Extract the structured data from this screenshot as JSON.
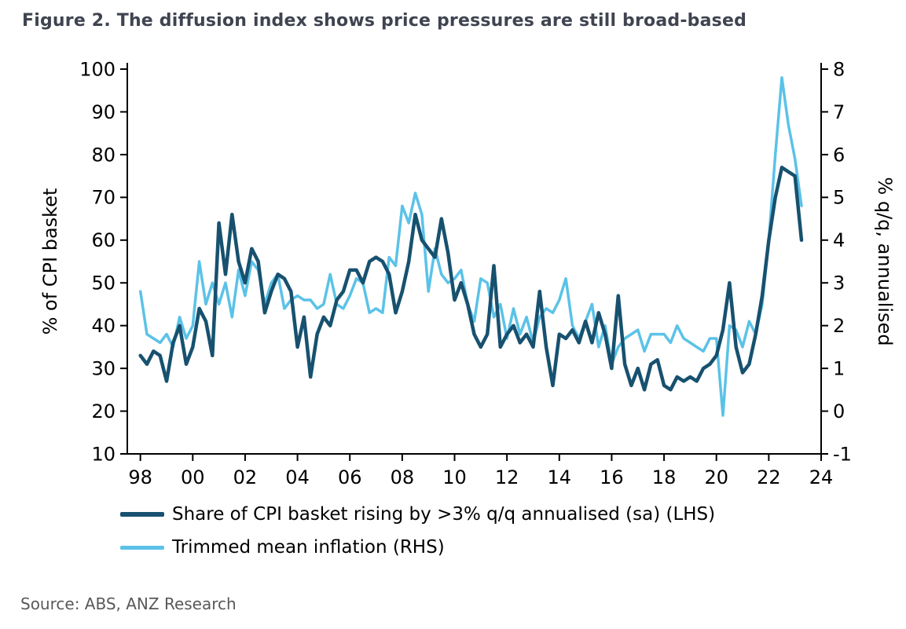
{
  "title": "Figure 2. The diffusion index shows price pressures are still broad-based",
  "source": "Source: ABS, ANZ Research",
  "colors": {
    "title": "#3f4450",
    "source": "#595959",
    "axis": "#000000",
    "lhs_series": "#17516F",
    "rhs_series": "#5BC2E7"
  },
  "chart_data": {
    "type": "line",
    "title": "Figure 2. The diffusion index shows price pressures are still broad-based",
    "ylabel_left": "% of CPI basket",
    "ylabel_right": "% q/q, annualised",
    "ylim_left": [
      10,
      100
    ],
    "ylim_right": [
      -1,
      8
    ],
    "xlim": [
      1997.5,
      2024
    ],
    "grid": false,
    "legend_position": "bottom",
    "x_tick_values": [
      1998,
      2000,
      2002,
      2004,
      2006,
      2008,
      2010,
      2012,
      2014,
      2016,
      2018,
      2020,
      2022,
      2024
    ],
    "x_tick_labels": [
      "98",
      "00",
      "02",
      "04",
      "06",
      "08",
      "10",
      "12",
      "14",
      "16",
      "18",
      "20",
      "22",
      "24"
    ],
    "y_ticks_left": [
      10,
      20,
      30,
      40,
      50,
      60,
      70,
      80,
      90,
      100
    ],
    "y_ticks_right": [
      -1,
      0,
      1,
      2,
      3,
      4,
      5,
      6,
      7,
      8
    ],
    "x": [
      1998,
      1998.25,
      1998.5,
      1998.75,
      1999,
      1999.25,
      1999.5,
      1999.75,
      2000,
      2000.25,
      2000.5,
      2000.75,
      2001,
      2001.25,
      2001.5,
      2001.75,
      2002,
      2002.25,
      2002.5,
      2002.75,
      2003,
      2003.25,
      2003.5,
      2003.75,
      2004,
      2004.25,
      2004.5,
      2004.75,
      2005,
      2005.25,
      2005.5,
      2005.75,
      2006,
      2006.25,
      2006.5,
      2006.75,
      2007,
      2007.25,
      2007.5,
      2007.75,
      2008,
      2008.25,
      2008.5,
      2008.75,
      2009,
      2009.25,
      2009.5,
      2009.75,
      2010,
      2010.25,
      2010.5,
      2010.75,
      2011,
      2011.25,
      2011.5,
      2011.75,
      2012,
      2012.25,
      2012.5,
      2012.75,
      2013,
      2013.25,
      2013.5,
      2013.75,
      2014,
      2014.25,
      2014.5,
      2014.75,
      2015,
      2015.25,
      2015.5,
      2015.75,
      2016,
      2016.25,
      2016.5,
      2016.75,
      2017,
      2017.25,
      2017.5,
      2017.75,
      2018,
      2018.25,
      2018.5,
      2018.75,
      2019,
      2019.25,
      2019.5,
      2019.75,
      2020,
      2020.25,
      2020.5,
      2020.75,
      2021,
      2021.25,
      2021.5,
      2021.75,
      2022,
      2022.25,
      2022.5,
      2022.75,
      2023,
      2023.25
    ],
    "series": [
      {
        "name": "Share of CPI basket rising by >3% q/q annualised (sa) (LHS)",
        "axis": "left",
        "color": "#17516F",
        "values": [
          33,
          31,
          34,
          33,
          27,
          36,
          40,
          31,
          35,
          44,
          41,
          33,
          64,
          52,
          66,
          55,
          50,
          58,
          55,
          43,
          48,
          52,
          51,
          48,
          35,
          42,
          28,
          38,
          42,
          40,
          46,
          48,
          53,
          53,
          50,
          55,
          56,
          55,
          52,
          43,
          48,
          55,
          66,
          60,
          58,
          56,
          65,
          57,
          46,
          50,
          45,
          38,
          35,
          38,
          54,
          35,
          38,
          40,
          36,
          38,
          35,
          48,
          35,
          26,
          38,
          37,
          39,
          36,
          41,
          36,
          43,
          38,
          30,
          47,
          31,
          26,
          30,
          25,
          31,
          32,
          26,
          25,
          28,
          27,
          28,
          27,
          30,
          31,
          33,
          39,
          50,
          35,
          29,
          31,
          38,
          47,
          60,
          70,
          77,
          76,
          75,
          60
        ]
      },
      {
        "name": "Trimmed mean inflation (RHS)",
        "axis": "right",
        "color": "#5BC2E7",
        "values": [
          2.8,
          1.8,
          1.7,
          1.6,
          1.8,
          1.5,
          2.2,
          1.7,
          2.0,
          3.5,
          2.5,
          3.0,
          2.5,
          3.0,
          2.2,
          3.3,
          2.7,
          3.5,
          3.3,
          2.5,
          3.0,
          3.2,
          2.4,
          2.6,
          2.7,
          2.6,
          2.6,
          2.4,
          2.5,
          3.2,
          2.5,
          2.4,
          2.7,
          3.1,
          3.0,
          2.3,
          2.4,
          2.3,
          3.6,
          3.4,
          4.8,
          4.4,
          5.1,
          4.6,
          2.8,
          3.8,
          3.2,
          3.0,
          3.1,
          3.3,
          2.5,
          2.1,
          3.1,
          3.0,
          2.2,
          2.5,
          1.7,
          2.4,
          1.8,
          2.2,
          1.6,
          2.2,
          2.4,
          2.3,
          2.6,
          3.1,
          2.0,
          1.7,
          2.1,
          2.5,
          1.5,
          2.0,
          1.1,
          1.5,
          1.7,
          1.8,
          1.9,
          1.4,
          1.8,
          1.8,
          1.8,
          1.6,
          2.0,
          1.7,
          1.6,
          1.5,
          1.4,
          1.7,
          1.7,
          -0.1,
          2.0,
          1.9,
          1.5,
          2.1,
          1.8,
          2.5,
          4.0,
          6.0,
          7.8,
          6.7,
          5.9,
          4.8
        ]
      }
    ]
  },
  "legend": {
    "items": [
      {
        "label": "Share of CPI basket rising by >3% q/q annualised (sa) (LHS)"
      },
      {
        "label": "Trimmed mean inflation (RHS)"
      }
    ]
  }
}
